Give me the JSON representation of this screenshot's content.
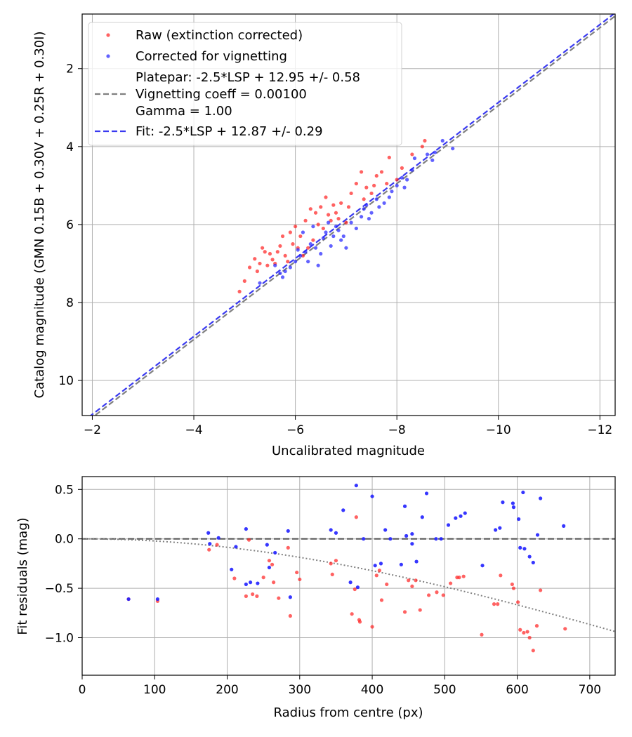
{
  "chart_data": [
    {
      "type": "scatter",
      "xlabel": "Uncalibrated magnitude",
      "ylabel": "Catalog magnitude (GMN 0.15B + 0.30V + 0.25R + 0.30I)",
      "xlim": [
        -1.8,
        -12.3
      ],
      "ylim": [
        10.9,
        0.6
      ],
      "x_inverted": true,
      "y_inverted": true,
      "xticks": [
        -2,
        -4,
        -6,
        -8,
        -10,
        -12
      ],
      "xtick_labels": [
        "−2",
        "−4",
        "−6",
        "−8",
        "−10",
        "−12"
      ],
      "yticks": [
        2,
        4,
        6,
        8,
        10
      ],
      "ytick_labels": [
        "2",
        "4",
        "6",
        "8",
        "10"
      ],
      "grid": true,
      "legend_position": "top-left",
      "legend": [
        {
          "label": "Raw (extinction corrected)",
          "style": "marker",
          "color": "#ff2020"
        },
        {
          "label": "Corrected for vignetting",
          "style": "marker",
          "color": "#2020ff"
        },
        {
          "label": "Platepar: -2.5*LSP + 12.95 +/- 0.58",
          "extra": [
            "Vignetting coeff = 0.00100",
            "Gamma = 1.00"
          ],
          "style": "dashed",
          "color": "#808080"
        },
        {
          "label": "Fit: -2.5*LSP + 12.87 +/- 0.29",
          "style": "dashed",
          "color": "#3a3af0"
        }
      ],
      "lines": [
        {
          "name": "Platepar",
          "slope": 1,
          "intercept": 12.95,
          "color": "#808080"
        },
        {
          "name": "Fit",
          "slope": 1,
          "intercept": 12.87,
          "color": "#3a3af0"
        }
      ],
      "series": [
        {
          "name": "Raw (extinction corrected)",
          "color": "#ff2020",
          "points": [
            [
              -4.9,
              7.72
            ],
            [
              -5.0,
              7.45
            ],
            [
              -5.2,
              6.88
            ],
            [
              -5.3,
              7.0
            ],
            [
              -5.35,
              6.6
            ],
            [
              -5.4,
              6.7
            ],
            [
              -5.5,
              6.75
            ],
            [
              -5.55,
              6.9
            ],
            [
              -5.6,
              7.0
            ],
            [
              -5.7,
              6.55
            ],
            [
              -5.75,
              6.3
            ],
            [
              -5.8,
              6.8
            ],
            [
              -5.9,
              6.2
            ],
            [
              -5.95,
              6.5
            ],
            [
              -6.0,
              6.05
            ],
            [
              -6.05,
              6.6
            ],
            [
              -6.1,
              6.3
            ],
            [
              -6.2,
              5.9
            ],
            [
              -6.25,
              6.6
            ],
            [
              -6.3,
              5.6
            ],
            [
              -6.35,
              6.4
            ],
            [
              -6.4,
              5.7
            ],
            [
              -6.5,
              5.55
            ],
            [
              -6.55,
              6.1
            ],
            [
              -6.6,
              5.3
            ],
            [
              -6.7,
              5.9
            ],
            [
              -6.75,
              5.5
            ],
            [
              -6.8,
              5.7
            ],
            [
              -6.9,
              5.45
            ],
            [
              -7.0,
              5.95
            ],
            [
              -7.1,
              5.2
            ],
            [
              -7.2,
              4.95
            ],
            [
              -7.3,
              4.65
            ],
            [
              -7.4,
              5.05
            ],
            [
              -7.5,
              5.2
            ],
            [
              -7.6,
              4.75
            ],
            [
              -7.7,
              4.65
            ],
            [
              -7.8,
              4.95
            ],
            [
              -7.85,
              4.28
            ],
            [
              -8.0,
              4.85
            ],
            [
              -8.1,
              4.55
            ],
            [
              -8.3,
              4.2
            ],
            [
              -8.5,
              4.0
            ],
            [
              -8.55,
              3.85
            ],
            [
              -5.1,
              7.1
            ],
            [
              -5.25,
              7.2
            ],
            [
              -5.45,
              7.05
            ],
            [
              -5.65,
              6.7
            ],
            [
              -5.85,
              6.95
            ],
            [
              -6.15,
              6.8
            ],
            [
              -6.45,
              6.0
            ],
            [
              -6.65,
              5.75
            ],
            [
              -6.85,
              5.85
            ],
            [
              -7.05,
              5.55
            ],
            [
              -7.35,
              5.35
            ],
            [
              -7.55,
              5.0
            ]
          ]
        },
        {
          "name": "Corrected for vignetting",
          "color": "#2020ff",
          "points": [
            [
              -5.3,
              7.5
            ],
            [
              -5.6,
              7.05
            ],
            [
              -5.7,
              7.25
            ],
            [
              -5.8,
              7.2
            ],
            [
              -5.9,
              7.1
            ],
            [
              -6.0,
              6.95
            ],
            [
              -6.05,
              6.65
            ],
            [
              -6.1,
              6.8
            ],
            [
              -6.15,
              6.2
            ],
            [
              -6.2,
              6.7
            ],
            [
              -6.25,
              6.95
            ],
            [
              -6.3,
              6.5
            ],
            [
              -6.35,
              6.05
            ],
            [
              -6.4,
              6.6
            ],
            [
              -6.5,
              6.75
            ],
            [
              -6.55,
              6.35
            ],
            [
              -6.6,
              6.2
            ],
            [
              -6.65,
              5.95
            ],
            [
              -6.7,
              6.55
            ],
            [
              -6.75,
              6.3
            ],
            [
              -6.8,
              6.05
            ],
            [
              -6.85,
              6.15
            ],
            [
              -6.9,
              6.4
            ],
            [
              -6.95,
              6.3
            ],
            [
              -7.1,
              5.95
            ],
            [
              -7.2,
              6.1
            ],
            [
              -7.3,
              5.8
            ],
            [
              -7.35,
              5.6
            ],
            [
              -7.4,
              5.5
            ],
            [
              -7.5,
              5.7
            ],
            [
              -7.6,
              5.35
            ],
            [
              -7.65,
              5.55
            ],
            [
              -7.75,
              5.45
            ],
            [
              -7.85,
              5.3
            ],
            [
              -7.9,
              5.15
            ],
            [
              -8.0,
              5.0
            ],
            [
              -8.1,
              4.8
            ],
            [
              -8.2,
              4.85
            ],
            [
              -8.3,
              4.6
            ],
            [
              -8.35,
              4.3
            ],
            [
              -8.6,
              4.2
            ],
            [
              -8.7,
              4.35
            ],
            [
              -8.75,
              4.15
            ],
            [
              -8.9,
              3.85
            ],
            [
              -9.1,
              4.05
            ],
            [
              -5.75,
              7.35
            ],
            [
              -6.45,
              7.05
            ],
            [
              -7.0,
              6.6
            ],
            [
              -7.45,
              5.85
            ],
            [
              -8.15,
              5.05
            ]
          ]
        }
      ]
    },
    {
      "type": "scatter",
      "xlabel": "Radius from centre (px)",
      "ylabel": "Fit residuals (mag)",
      "xlim": [
        0,
        735
      ],
      "ylim": [
        -1.38,
        0.63
      ],
      "xticks": [
        0,
        100,
        200,
        300,
        400,
        500,
        600,
        700
      ],
      "xtick_labels": [
        "0",
        "100",
        "200",
        "300",
        "400",
        "500",
        "600",
        "700"
      ],
      "yticks": [
        0.5,
        0.0,
        -0.5,
        -1.0
      ],
      "ytick_labels": [
        "0.5",
        "0.0",
        "−0.5",
        "−1.0"
      ],
      "grid": true,
      "reference_line": {
        "y": 0,
        "style": "dashed",
        "color": "#555555"
      },
      "vignetting_curve": {
        "coefficient": 0.001,
        "style": "dotted",
        "color": "#808080"
      },
      "series": [
        {
          "name": "Raw (extinction corrected)",
          "color": "#ff2020",
          "points": [
            [
              64,
              -0.61
            ],
            [
              104,
              -0.63
            ],
            [
              175,
              -0.11
            ],
            [
              186,
              -0.06
            ],
            [
              210,
              -0.4
            ],
            [
              226,
              -0.58
            ],
            [
              230,
              -0.01
            ],
            [
              235,
              -0.56
            ],
            [
              241,
              -0.58
            ],
            [
              250,
              -0.39
            ],
            [
              258,
              -0.22
            ],
            [
              262,
              -0.26
            ],
            [
              264,
              -0.44
            ],
            [
              271,
              -0.6
            ],
            [
              284,
              -0.09
            ],
            [
              287,
              -0.78
            ],
            [
              296,
              -0.34
            ],
            [
              300,
              -0.41
            ],
            [
              343,
              -0.25
            ],
            [
              345,
              -0.36
            ],
            [
              350,
              -0.22
            ],
            [
              372,
              -0.76
            ],
            [
              376,
              -0.51
            ],
            [
              378,
              0.22
            ],
            [
              382,
              -0.82
            ],
            [
              383,
              -0.84
            ],
            [
              400,
              -0.89
            ],
            [
              406,
              -0.37
            ],
            [
              410,
              -0.32
            ],
            [
              413,
              -0.62
            ],
            [
              420,
              -0.46
            ],
            [
              445,
              -0.74
            ],
            [
              450,
              -0.42
            ],
            [
              455,
              -0.48
            ],
            [
              460,
              -0.42
            ],
            [
              466,
              -0.72
            ],
            [
              478,
              -0.57
            ],
            [
              489,
              -0.54
            ],
            [
              498,
              -0.57
            ],
            [
              508,
              -0.45
            ],
            [
              517,
              -0.39
            ],
            [
              520,
              -0.39
            ],
            [
              526,
              -0.38
            ],
            [
              551,
              -0.97
            ],
            [
              568,
              -0.66
            ],
            [
              573,
              -0.66
            ],
            [
              577,
              -0.37
            ],
            [
              593,
              -0.46
            ],
            [
              595,
              -0.5
            ],
            [
              601,
              -0.64
            ],
            [
              604,
              -0.92
            ],
            [
              609,
              -0.95
            ],
            [
              614,
              -0.94
            ],
            [
              617,
              -1.0
            ],
            [
              622,
              -1.13
            ],
            [
              627,
              -0.88
            ],
            [
              632,
              -0.52
            ],
            [
              666,
              -0.91
            ]
          ]
        },
        {
          "name": "Corrected for vignetting",
          "color": "#2020ff",
          "points": [
            [
              64,
              -0.61
            ],
            [
              104,
              -0.61
            ],
            [
              174,
              0.06
            ],
            [
              176,
              -0.05
            ],
            [
              188,
              0.01
            ],
            [
              206,
              -0.31
            ],
            [
              212,
              -0.08
            ],
            [
              226,
              -0.46
            ],
            [
              226,
              0.1
            ],
            [
              232,
              -0.44
            ],
            [
              242,
              -0.45
            ],
            [
              255,
              -0.06
            ],
            [
              258,
              -0.29
            ],
            [
              266,
              -0.14
            ],
            [
              284,
              0.08
            ],
            [
              287,
              -0.59
            ],
            [
              343,
              0.09
            ],
            [
              350,
              0.06
            ],
            [
              360,
              0.29
            ],
            [
              370,
              -0.44
            ],
            [
              378,
              0.54
            ],
            [
              388,
              0.0
            ],
            [
              400,
              0.43
            ],
            [
              404,
              -0.27
            ],
            [
              412,
              -0.25
            ],
            [
              418,
              0.09
            ],
            [
              425,
              -0.0
            ],
            [
              440,
              -0.26
            ],
            [
              445,
              0.33
            ],
            [
              447,
              0.03
            ],
            [
              455,
              0.05
            ],
            [
              461,
              -0.23
            ],
            [
              469,
              0.22
            ],
            [
              475,
              0.46
            ],
            [
              488,
              0.0
            ],
            [
              495,
              0.0
            ],
            [
              505,
              0.14
            ],
            [
              515,
              0.21
            ],
            [
              522,
              0.23
            ],
            [
              528,
              0.26
            ],
            [
              552,
              -0.27
            ],
            [
              570,
              0.09
            ],
            [
              576,
              0.11
            ],
            [
              580,
              0.37
            ],
            [
              594,
              0.36
            ],
            [
              595,
              0.32
            ],
            [
              602,
              0.2
            ],
            [
              604,
              -0.09
            ],
            [
              608,
              0.47
            ],
            [
              610,
              -0.1
            ],
            [
              617,
              -0.18
            ],
            [
              622,
              -0.24
            ],
            [
              628,
              0.04
            ],
            [
              632,
              0.41
            ],
            [
              664,
              0.13
            ],
            [
              380,
              -0.49
            ],
            [
              455,
              -0.05
            ]
          ]
        }
      ]
    }
  ]
}
